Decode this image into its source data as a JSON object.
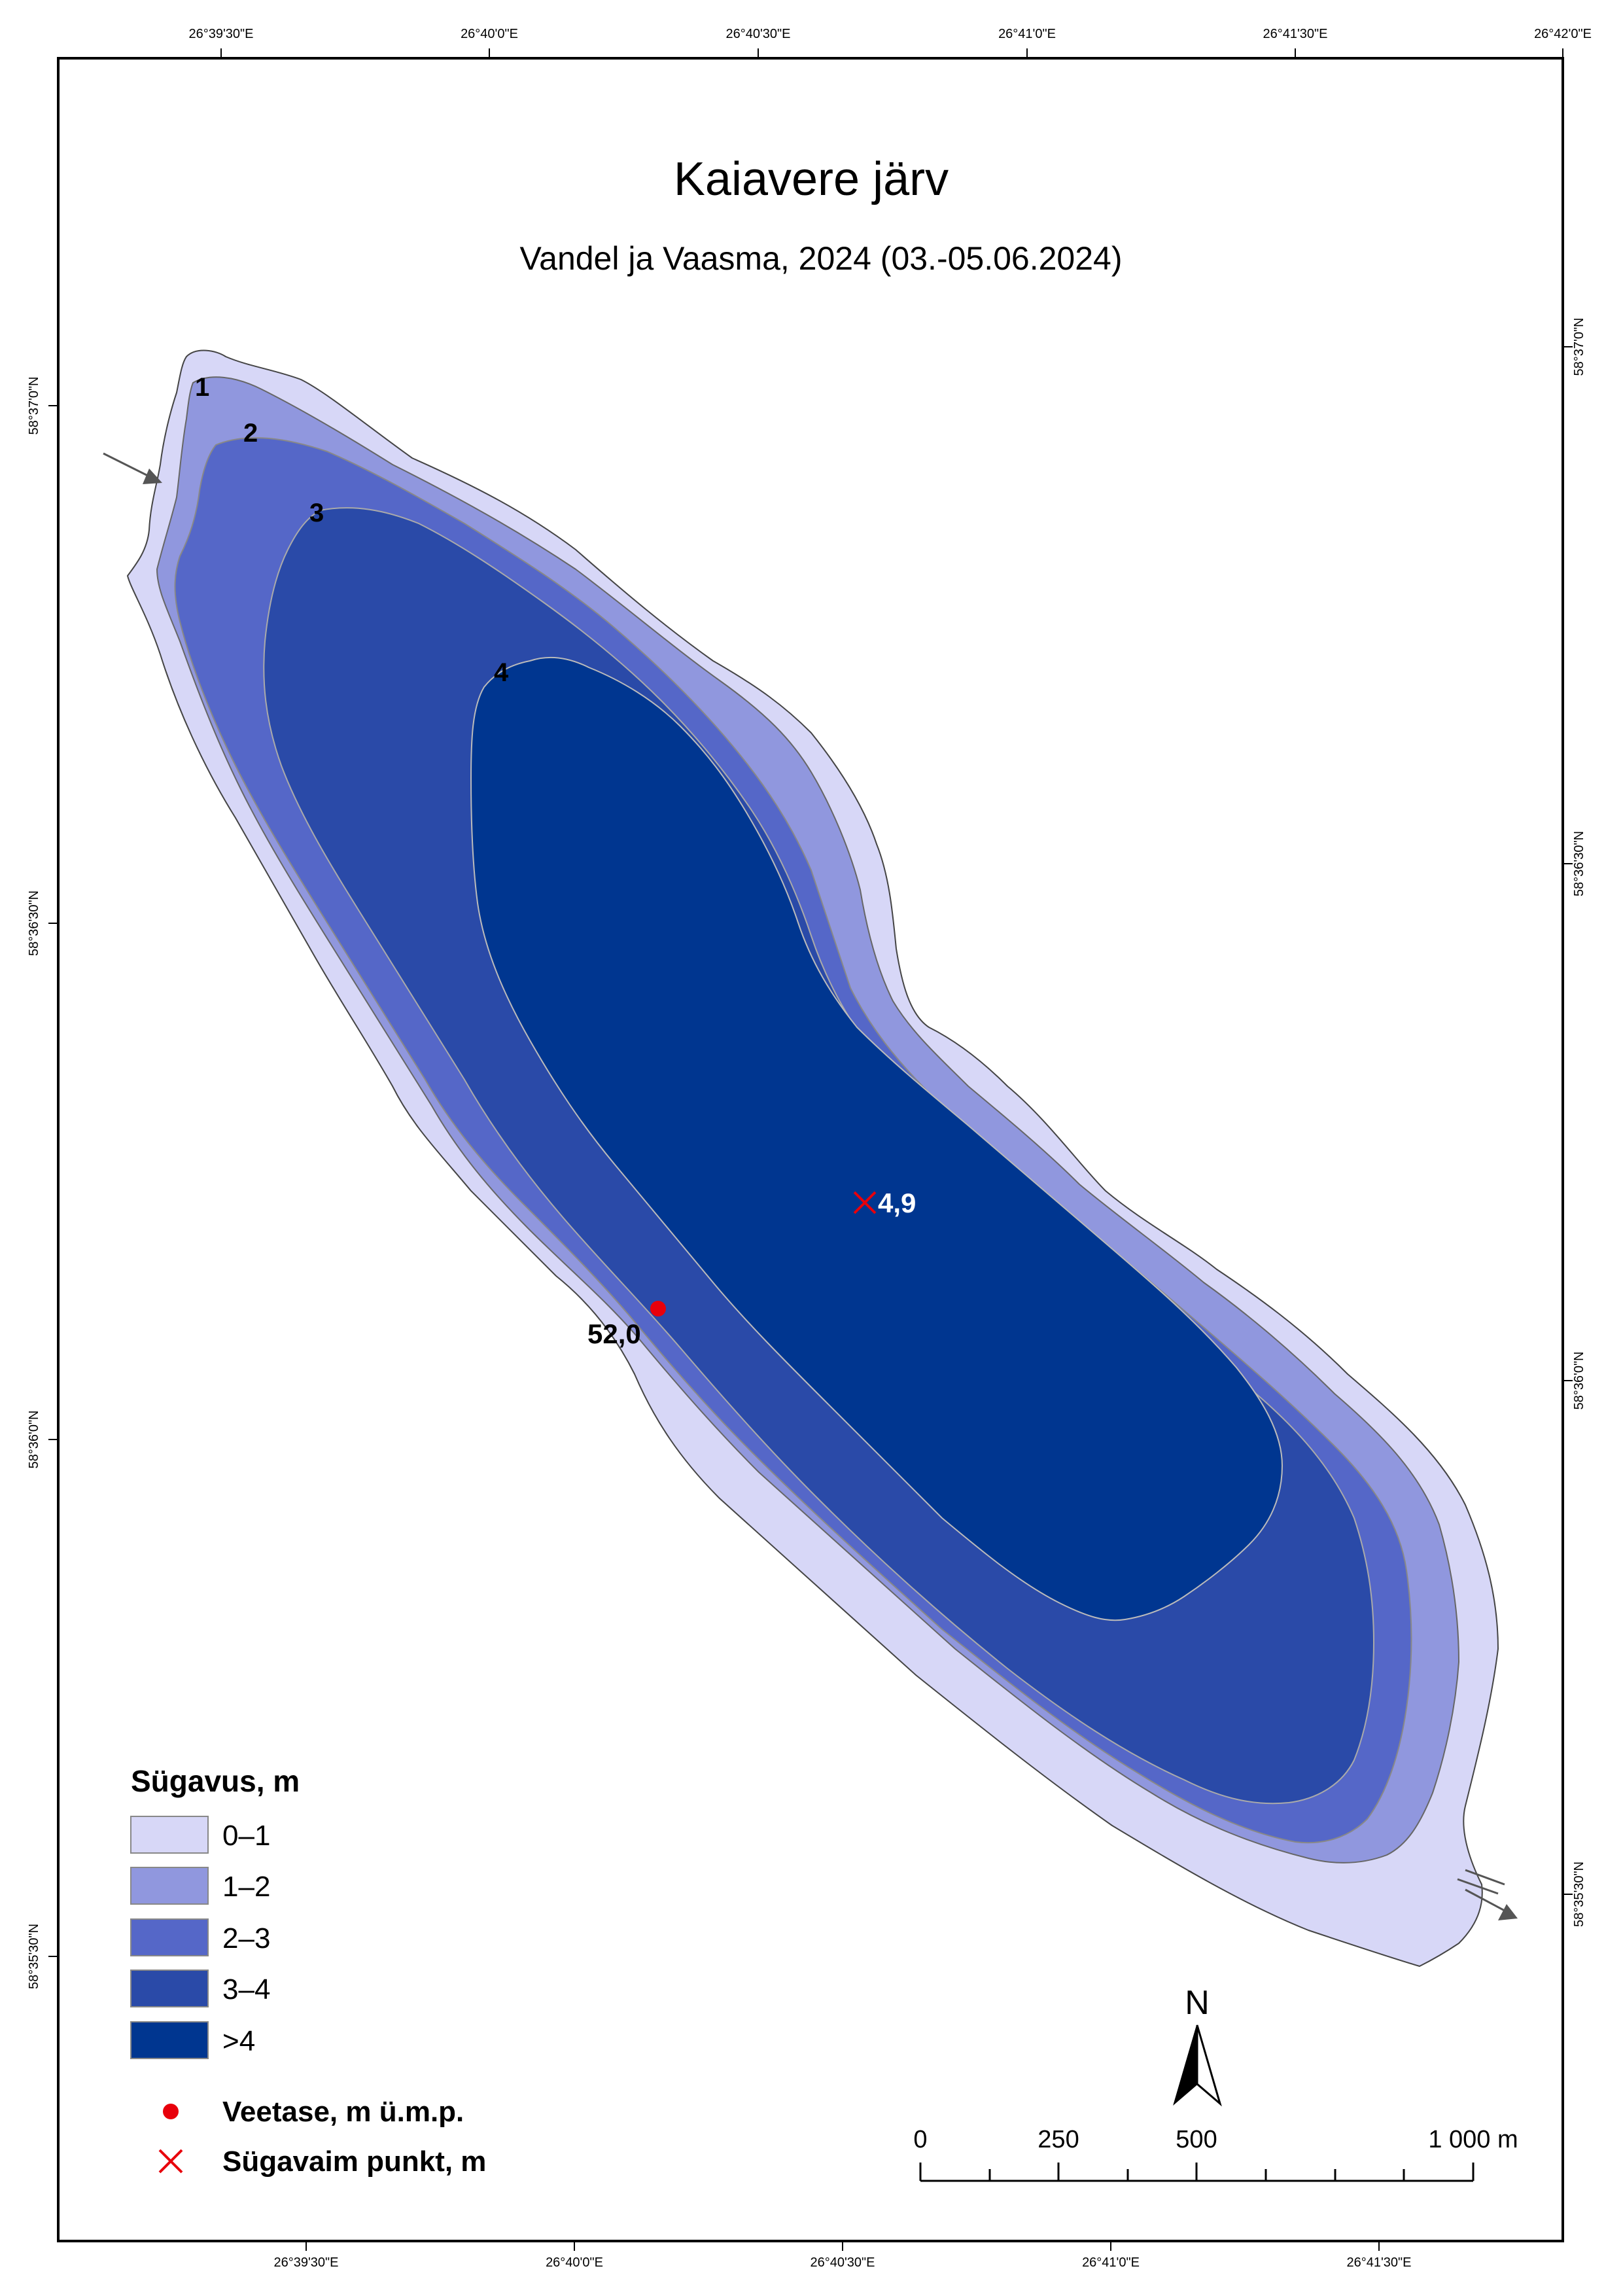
{
  "title": "Kaiavere järv",
  "subtitle": "Vandel ja Vaasma, 2024 (03.-05.06.2024)",
  "coordinates": {
    "top": [
      "26°39'30\"E",
      "26°40'0\"E",
      "26°40'30\"E",
      "26°41'0\"E",
      "26°41'30\"E",
      "26°42'0\"E"
    ],
    "bottom": [
      "26°39'30\"E",
      "26°40'0\"E",
      "26°40'30\"E",
      "26°41'0\"E",
      "26°41'30\"E"
    ],
    "left": [
      "58°37'0\"N",
      "58°36'30\"N",
      "58°36'0\"N",
      "58°35'30\"N"
    ],
    "right": [
      "58°37'0\"N",
      "58°36'30\"N",
      "58°36'0\"N",
      "58°35'30\"N"
    ]
  },
  "contour_labels": [
    "1",
    "2",
    "3",
    "4"
  ],
  "deepest_point": {
    "value": "4,9"
  },
  "water_level": {
    "value": "52,0"
  },
  "legend": {
    "title": "Sügavus, m",
    "classes": [
      {
        "label": "0–1",
        "color": "#d7d7f7"
      },
      {
        "label": "1–2",
        "color": "#9097de"
      },
      {
        "label": "2–3",
        "color": "#5567c8"
      },
      {
        "label": "3–4",
        "color": "#2a4aa8"
      },
      {
        "label": ">4",
        "color": "#003690"
      }
    ],
    "water_level_label": "Veetase, m ü.m.p.",
    "deepest_label": "Sügavaim punkt, m"
  },
  "scale_bar": {
    "labels": [
      "0",
      "250",
      "500",
      "1 000 m"
    ]
  },
  "north_arrow": {
    "label": "N"
  },
  "colors": {
    "marker_red": "#e8000b",
    "frame": "#000000",
    "shore_line": "#444444"
  }
}
